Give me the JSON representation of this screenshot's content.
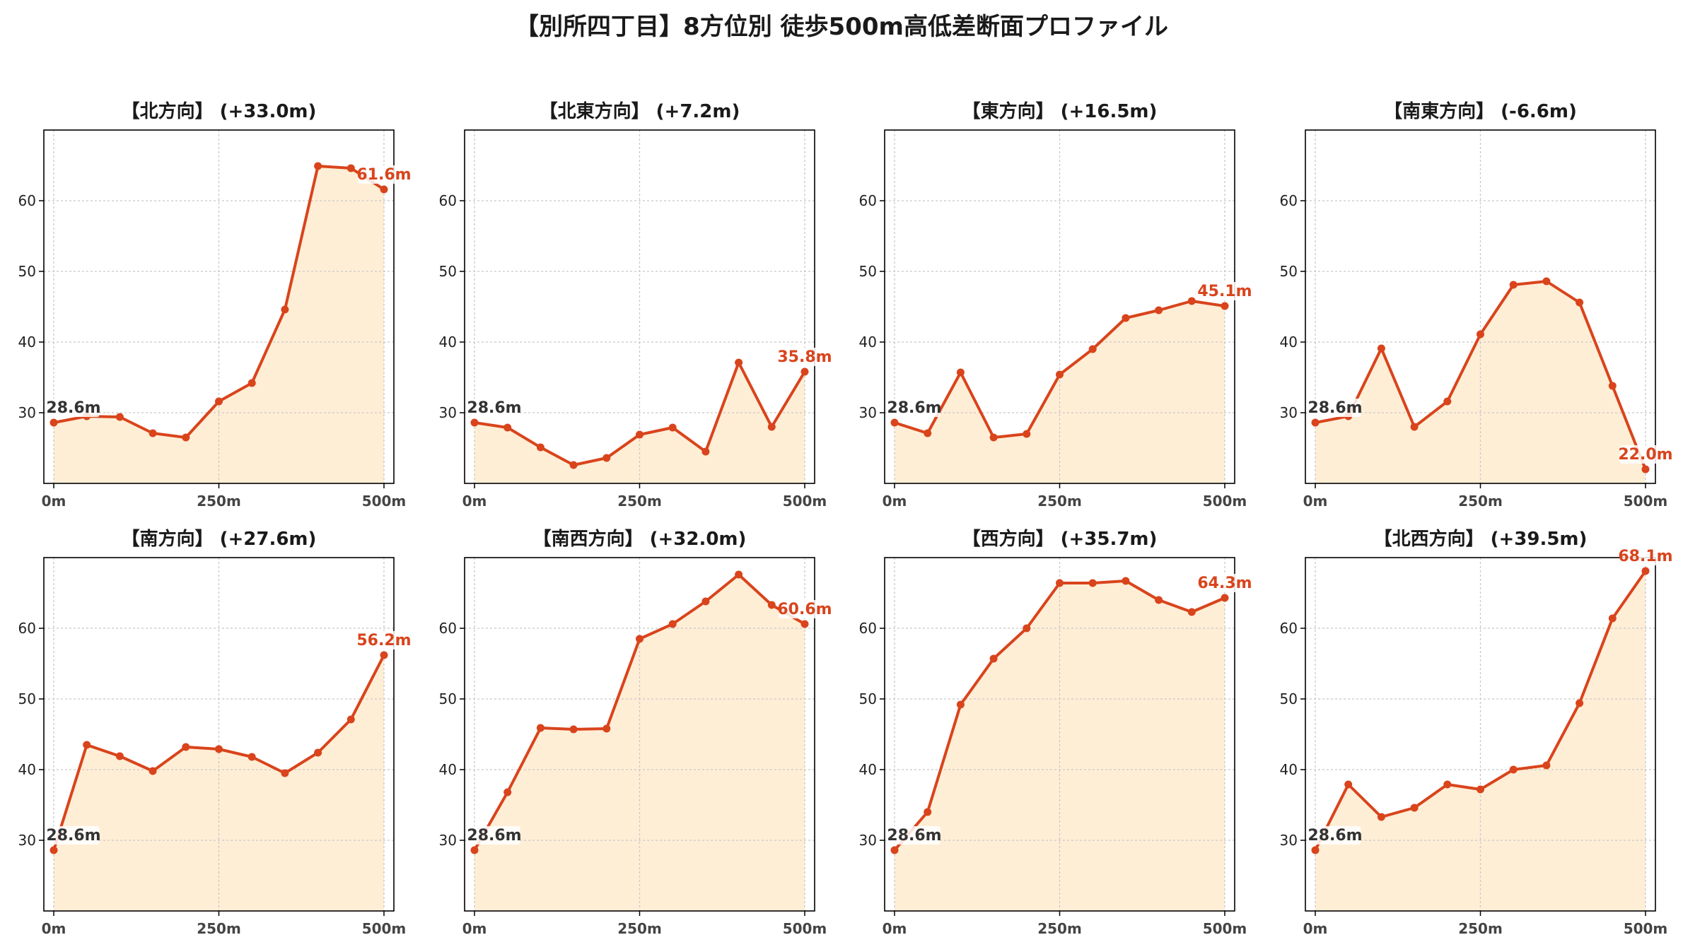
{
  "figure": {
    "title": "【別所四丁目】8方位別 徒歩500m高低差断面プロファイル",
    "colors": {
      "line": "#d9441c",
      "fill": "#ffeed6",
      "start_label": "#333333",
      "end_label": "#d9441c",
      "grid": "#c8c8c8"
    }
  },
  "chart_data": [
    {
      "type": "area",
      "title": "【北方向】 (+33.0m)",
      "x": [
        0,
        50,
        100,
        150,
        200,
        250,
        300,
        350,
        400,
        450,
        500
      ],
      "y": [
        28.6,
        29.5,
        29.4,
        27.1,
        26.5,
        31.6,
        34.2,
        44.6,
        64.9,
        64.6,
        61.6
      ],
      "xticks": [
        "0m",
        "250m",
        "500m"
      ],
      "yticks": [
        30,
        40,
        50,
        60
      ],
      "ylim": [
        20,
        70
      ],
      "xlim": [
        -15,
        515
      ],
      "start_label": "28.6m",
      "end_label": "61.6m",
      "grid": true
    },
    {
      "type": "area",
      "title": "【北東方向】 (+7.2m)",
      "x": [
        0,
        50,
        100,
        150,
        200,
        250,
        300,
        350,
        400,
        450,
        500
      ],
      "y": [
        28.6,
        27.9,
        25.1,
        22.6,
        23.6,
        26.9,
        27.9,
        24.5,
        37.1,
        28.0,
        35.8
      ],
      "xticks": [
        "0m",
        "250m",
        "500m"
      ],
      "yticks": [
        30,
        40,
        50,
        60
      ],
      "ylim": [
        20,
        70
      ],
      "xlim": [
        -15,
        515
      ],
      "start_label": "28.6m",
      "end_label": "35.8m",
      "grid": true
    },
    {
      "type": "area",
      "title": "【東方向】 (+16.5m)",
      "x": [
        0,
        50,
        100,
        150,
        200,
        250,
        300,
        350,
        400,
        450,
        500
      ],
      "y": [
        28.6,
        27.1,
        35.7,
        26.5,
        27.0,
        35.4,
        39.0,
        43.4,
        44.5,
        45.8,
        45.1
      ],
      "xticks": [
        "0m",
        "250m",
        "500m"
      ],
      "yticks": [
        30,
        40,
        50,
        60
      ],
      "ylim": [
        20,
        70
      ],
      "xlim": [
        -15,
        515
      ],
      "start_label": "28.6m",
      "end_label": "45.1m",
      "grid": true
    },
    {
      "type": "area",
      "title": "【南東方向】 (-6.6m)",
      "x": [
        0,
        50,
        100,
        150,
        200,
        250,
        300,
        350,
        400,
        450,
        500
      ],
      "y": [
        28.6,
        29.5,
        39.1,
        28.0,
        31.6,
        41.1,
        48.1,
        48.6,
        45.6,
        33.8,
        22.0
      ],
      "xticks": [
        "0m",
        "250m",
        "500m"
      ],
      "yticks": [
        30,
        40,
        50,
        60
      ],
      "ylim": [
        20,
        70
      ],
      "xlim": [
        -15,
        515
      ],
      "start_label": "28.6m",
      "end_label": "22.0m",
      "grid": true
    },
    {
      "type": "area",
      "title": "【南方向】 (+27.6m)",
      "x": [
        0,
        50,
        100,
        150,
        200,
        250,
        300,
        350,
        400,
        450,
        500
      ],
      "y": [
        28.6,
        43.5,
        41.9,
        39.8,
        43.2,
        42.9,
        41.8,
        39.5,
        42.4,
        47.1,
        56.2
      ],
      "xticks": [
        "0m",
        "250m",
        "500m"
      ],
      "yticks": [
        30,
        40,
        50,
        60
      ],
      "ylim": [
        20,
        70
      ],
      "xlim": [
        -15,
        515
      ],
      "start_label": "28.6m",
      "end_label": "56.2m",
      "grid": true
    },
    {
      "type": "area",
      "title": "【南西方向】 (+32.0m)",
      "x": [
        0,
        50,
        100,
        150,
        200,
        250,
        300,
        350,
        400,
        450,
        500
      ],
      "y": [
        28.6,
        36.8,
        45.9,
        45.7,
        45.8,
        58.5,
        60.6,
        63.8,
        67.6,
        63.3,
        60.6
      ],
      "xticks": [
        "0m",
        "250m",
        "500m"
      ],
      "yticks": [
        30,
        40,
        50,
        60
      ],
      "ylim": [
        20,
        70
      ],
      "xlim": [
        -15,
        515
      ],
      "start_label": "28.6m",
      "end_label": "60.6m",
      "grid": true
    },
    {
      "type": "area",
      "title": "【西方向】 (+35.7m)",
      "x": [
        0,
        50,
        100,
        150,
        200,
        250,
        300,
        350,
        400,
        450,
        500
      ],
      "y": [
        28.6,
        34.0,
        49.2,
        55.7,
        60.0,
        66.4,
        66.4,
        66.7,
        64.0,
        62.3,
        64.3
      ],
      "xticks": [
        "0m",
        "250m",
        "500m"
      ],
      "yticks": [
        30,
        40,
        50,
        60
      ],
      "ylim": [
        20,
        70
      ],
      "xlim": [
        -15,
        515
      ],
      "start_label": "28.6m",
      "end_label": "64.3m",
      "grid": true
    },
    {
      "type": "area",
      "title": "【北西方向】 (+39.5m)",
      "x": [
        0,
        50,
        100,
        150,
        200,
        250,
        300,
        350,
        400,
        450,
        500
      ],
      "y": [
        28.6,
        37.9,
        33.3,
        34.6,
        37.9,
        37.2,
        40.0,
        40.6,
        49.4,
        61.4,
        68.1
      ],
      "xticks": [
        "0m",
        "250m",
        "500m"
      ],
      "yticks": [
        30,
        40,
        50,
        60
      ],
      "ylim": [
        20,
        70
      ],
      "xlim": [
        -15,
        515
      ],
      "start_label": "28.6m",
      "end_label": "68.1m",
      "grid": true
    }
  ]
}
